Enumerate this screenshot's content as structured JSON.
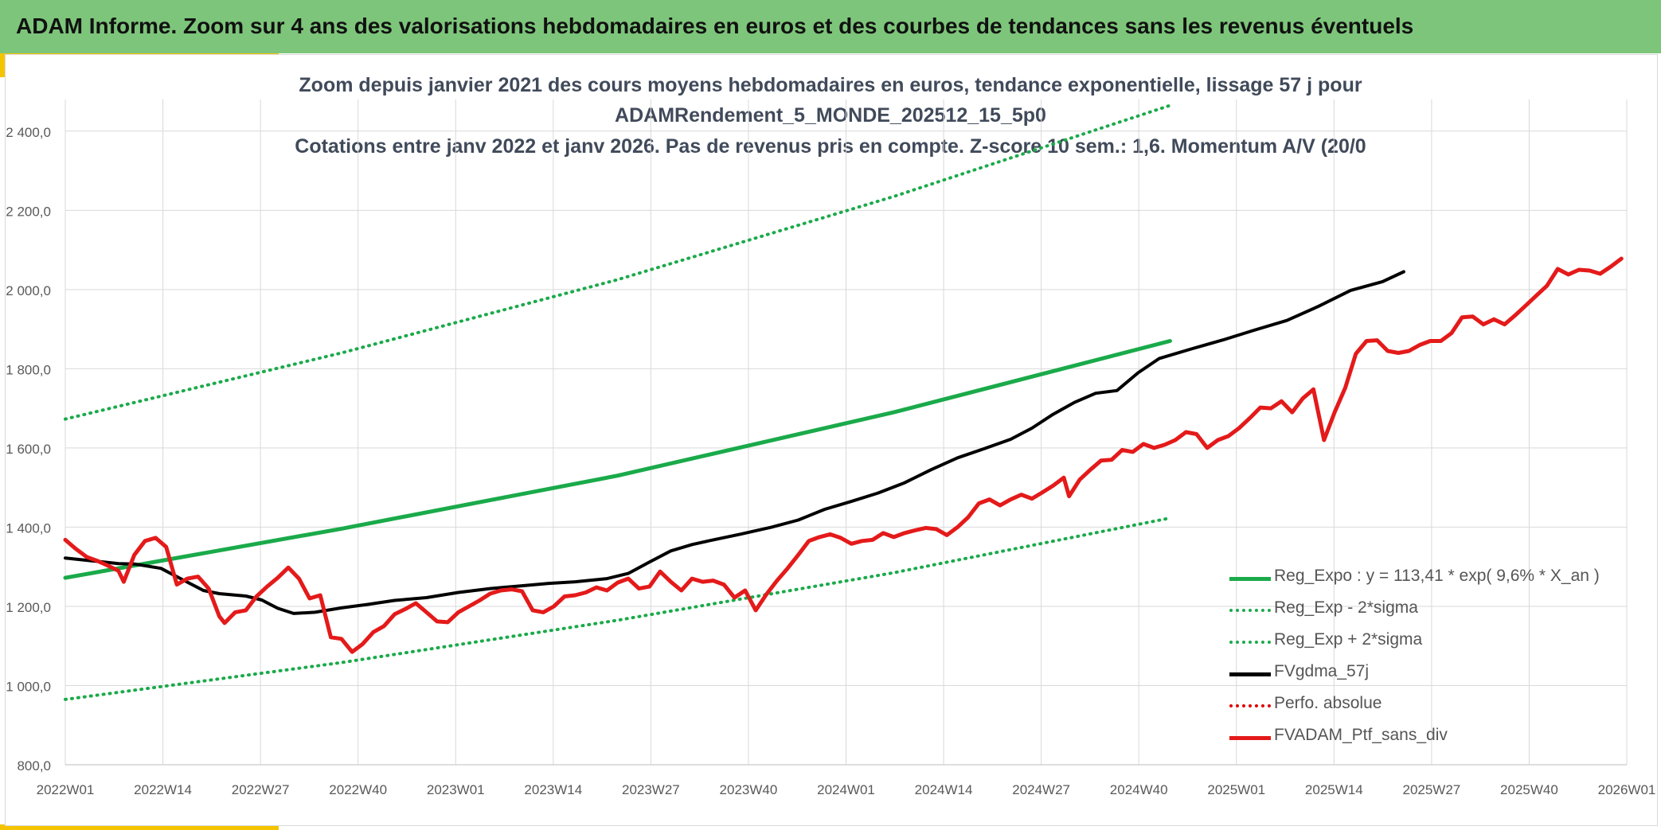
{
  "banner": {
    "title": "ADAM Informe. Zoom sur 4 ans des valorisations hebdomadaires en euros et des courbes de tendances sans les revenus éventuels"
  },
  "chart_data": {
    "type": "line",
    "title": "Zoom depuis janvier 2021 des cours moyens hebdomadaires en euros, tendance exponentielle, lissage 57 j pour",
    "title_line2": "ADAMRendement_5_MONDE_202512_15_5p0",
    "subtitle": "Cotations entre janv 2022 et janv 2026. Pas de revenus pris en compte. Z-score 10 sem.: 1,6. Momentum A/V (20/0",
    "x_categories": [
      "2022W01",
      "2022W14",
      "2022W27",
      "2022W40",
      "2023W01",
      "2023W14",
      "2023W27",
      "2023W40",
      "2024W01",
      "2024W14",
      "2024W27",
      "2024W40",
      "2025W01",
      "2025W14",
      "2025W27",
      "2025W40",
      "2026W01"
    ],
    "x_range_weeks": [
      0,
      208
    ],
    "y_ticks": [
      "800,0",
      "1 000,0",
      "1 200,0",
      "1 400,0",
      "1 600,0",
      "1 800,0",
      "2 000,0",
      "2 200,0",
      "2 400,0"
    ],
    "ylim": [
      800,
      2480
    ],
    "grid": true,
    "legend_position": "bottom-right",
    "series": [
      {
        "name": "Reg_Expo : y = 113,41 * exp( 9,6% *  X_an )",
        "color": "#1aaa4a",
        "style": "solid",
        "points": [
          [
            0,
            1272
          ],
          [
            52,
            1396
          ],
          [
            104,
            1530
          ],
          [
            156,
            1690
          ],
          [
            208,
            1870
          ]
        ]
      },
      {
        "name": "Reg_Exp - 2*sigma",
        "color": "#1aaa4a",
        "style": "dotted",
        "points": [
          [
            0,
            965
          ],
          [
            52,
            1058
          ],
          [
            104,
            1165
          ],
          [
            156,
            1285
          ],
          [
            208,
            1423
          ]
        ]
      },
      {
        "name": "Reg_Exp + 2*sigma",
        "color": "#1aaa4a",
        "style": "dotted",
        "points": [
          [
            0,
            1673
          ],
          [
            52,
            1840
          ],
          [
            104,
            2025
          ],
          [
            156,
            2235
          ],
          [
            208,
            2465
          ]
        ]
      },
      {
        "name": "FVgdma_57j",
        "color": "#000000",
        "style": "solid",
        "points": [
          [
            0,
            1322
          ],
          [
            5,
            1315
          ],
          [
            10,
            1308
          ],
          [
            13,
            1307
          ],
          [
            18,
            1296
          ],
          [
            22,
            1268
          ],
          [
            26,
            1240
          ],
          [
            29,
            1232
          ],
          [
            34,
            1226
          ],
          [
            37,
            1216
          ],
          [
            40,
            1195
          ],
          [
            43,
            1182
          ],
          [
            47,
            1185
          ],
          [
            52,
            1196
          ],
          [
            57,
            1205
          ],
          [
            62,
            1215
          ],
          [
            68,
            1222
          ],
          [
            74,
            1235
          ],
          [
            80,
            1245
          ],
          [
            86,
            1252
          ],
          [
            91,
            1258
          ],
          [
            96,
            1262
          ],
          [
            102,
            1270
          ],
          [
            106,
            1283
          ],
          [
            110,
            1312
          ],
          [
            114,
            1340
          ],
          [
            118,
            1356
          ],
          [
            122,
            1368
          ],
          [
            127,
            1382
          ],
          [
            133,
            1400
          ],
          [
            138,
            1418
          ],
          [
            143,
            1445
          ],
          [
            148,
            1465
          ],
          [
            153,
            1486
          ],
          [
            158,
            1512
          ],
          [
            163,
            1545
          ],
          [
            168,
            1575
          ],
          [
            173,
            1598
          ],
          [
            178,
            1622
          ],
          [
            182,
            1650
          ],
          [
            186,
            1685
          ],
          [
            190,
            1715
          ],
          [
            194,
            1738
          ],
          [
            198,
            1745
          ],
          [
            202,
            1790
          ],
          [
            206,
            1826
          ],
          [
            212,
            1850
          ],
          [
            218,
            1873
          ],
          [
            224,
            1898
          ],
          [
            230,
            1922
          ],
          [
            236,
            1958
          ],
          [
            242,
            1998
          ],
          [
            248,
            2020
          ],
          [
            252,
            2045
          ]
        ]
      },
      {
        "name": "Perfo. absolue",
        "color": "#e00000",
        "style": "dotted",
        "points": []
      },
      {
        "name": "FVADAM_Ptf_sans_div",
        "color": "#e41a1a",
        "style": "solid",
        "points": [
          [
            0,
            1368
          ],
          [
            2,
            1345
          ],
          [
            4,
            1325
          ],
          [
            6,
            1315
          ],
          [
            8,
            1303
          ],
          [
            10,
            1290
          ],
          [
            11,
            1262
          ],
          [
            13,
            1330
          ],
          [
            15,
            1365
          ],
          [
            17,
            1373
          ],
          [
            19,
            1350
          ],
          [
            21,
            1255
          ],
          [
            23,
            1270
          ],
          [
            25,
            1275
          ],
          [
            27,
            1245
          ],
          [
            29,
            1175
          ],
          [
            30,
            1158
          ],
          [
            32,
            1185
          ],
          [
            34,
            1190
          ],
          [
            36,
            1225
          ],
          [
            38,
            1250
          ],
          [
            40,
            1272
          ],
          [
            42,
            1298
          ],
          [
            44,
            1270
          ],
          [
            46,
            1220
          ],
          [
            48,
            1228
          ],
          [
            50,
            1122
          ],
          [
            52,
            1118
          ],
          [
            54,
            1085
          ],
          [
            56,
            1105
          ],
          [
            58,
            1135
          ],
          [
            60,
            1150
          ],
          [
            62,
            1180
          ],
          [
            64,
            1193
          ],
          [
            66,
            1208
          ],
          [
            68,
            1185
          ],
          [
            70,
            1162
          ],
          [
            72,
            1160
          ],
          [
            74,
            1185
          ],
          [
            76,
            1200
          ],
          [
            78,
            1215
          ],
          [
            80,
            1232
          ],
          [
            82,
            1240
          ],
          [
            84,
            1243
          ],
          [
            86,
            1238
          ],
          [
            88,
            1190
          ],
          [
            90,
            1185
          ],
          [
            92,
            1200
          ],
          [
            94,
            1225
          ],
          [
            96,
            1228
          ],
          [
            98,
            1235
          ],
          [
            100,
            1248
          ],
          [
            102,
            1240
          ],
          [
            104,
            1260
          ],
          [
            106,
            1270
          ],
          [
            108,
            1245
          ],
          [
            110,
            1250
          ],
          [
            112,
            1288
          ],
          [
            114,
            1262
          ],
          [
            116,
            1240
          ],
          [
            118,
            1270
          ],
          [
            120,
            1262
          ],
          [
            122,
            1265
          ],
          [
            124,
            1255
          ],
          [
            126,
            1222
          ],
          [
            128,
            1240
          ],
          [
            130,
            1190
          ],
          [
            132,
            1230
          ],
          [
            134,
            1265
          ],
          [
            136,
            1296
          ],
          [
            138,
            1330
          ],
          [
            140,
            1365
          ],
          [
            142,
            1375
          ],
          [
            144,
            1382
          ],
          [
            146,
            1373
          ],
          [
            148,
            1358
          ],
          [
            150,
            1365
          ],
          [
            152,
            1368
          ],
          [
            154,
            1385
          ],
          [
            156,
            1375
          ],
          [
            158,
            1385
          ],
          [
            160,
            1392
          ],
          [
            162,
            1398
          ],
          [
            164,
            1395
          ],
          [
            166,
            1380
          ],
          [
            168,
            1400
          ],
          [
            170,
            1425
          ],
          [
            172,
            1460
          ],
          [
            174,
            1470
          ],
          [
            176,
            1455
          ],
          [
            178,
            1470
          ],
          [
            180,
            1482
          ],
          [
            182,
            1472
          ],
          [
            184,
            1488
          ],
          [
            186,
            1505
          ],
          [
            188,
            1525
          ],
          [
            189,
            1478
          ],
          [
            191,
            1520
          ],
          [
            193,
            1545
          ],
          [
            195,
            1568
          ],
          [
            197,
            1570
          ],
          [
            199,
            1595
          ],
          [
            201,
            1590
          ],
          [
            203,
            1610
          ],
          [
            205,
            1600
          ],
          [
            207,
            1608
          ],
          [
            209,
            1620
          ],
          [
            211,
            1640
          ],
          [
            213,
            1635
          ],
          [
            215,
            1600
          ],
          [
            217,
            1620
          ],
          [
            219,
            1630
          ],
          [
            221,
            1650
          ],
          [
            223,
            1675
          ],
          [
            225,
            1702
          ],
          [
            227,
            1700
          ],
          [
            229,
            1718
          ],
          [
            231,
            1690
          ],
          [
            233,
            1725
          ],
          [
            235,
            1748
          ],
          [
            237,
            1620
          ],
          [
            239,
            1690
          ],
          [
            241,
            1752
          ],
          [
            243,
            1838
          ],
          [
            245,
            1870
          ],
          [
            247,
            1872
          ],
          [
            249,
            1845
          ],
          [
            251,
            1840
          ],
          [
            253,
            1845
          ],
          [
            255,
            1860
          ],
          [
            257,
            1870
          ],
          [
            259,
            1870
          ],
          [
            261,
            1890
          ],
          [
            263,
            1930
          ],
          [
            265,
            1932
          ],
          [
            267,
            1912
          ],
          [
            269,
            1925
          ],
          [
            271,
            1912
          ],
          [
            273,
            1935
          ],
          [
            275,
            1960
          ],
          [
            277,
            1985
          ],
          [
            279,
            2010
          ],
          [
            281,
            2052
          ],
          [
            283,
            2038
          ],
          [
            285,
            2050
          ],
          [
            287,
            2048
          ],
          [
            289,
            2040
          ],
          [
            291,
            2058
          ],
          [
            293,
            2078
          ]
        ]
      }
    ]
  }
}
